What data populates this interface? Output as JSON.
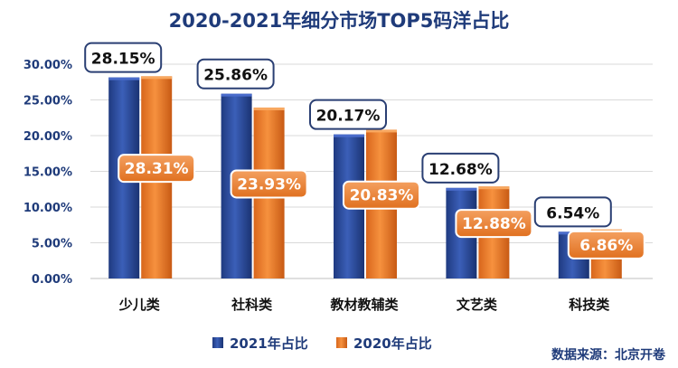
{
  "chart_data": {
    "type": "bar",
    "title": "2020-2021年细分市场TOP5码洋占比",
    "categories": [
      "少儿类",
      "社科类",
      "教材教辅类",
      "文艺类",
      "科技类"
    ],
    "series": [
      {
        "name": "2021年占比",
        "values": [
          28.15,
          25.86,
          20.17,
          12.68,
          6.54
        ],
        "labels": [
          "28.15%",
          "25.86%",
          "20.17%",
          "12.68%",
          "6.54%"
        ],
        "color": "#2f4f9e"
      },
      {
        "name": "2020年占比",
        "values": [
          28.31,
          23.93,
          20.83,
          12.88,
          6.86
        ],
        "labels": [
          "28.31%",
          "23.93%",
          "20.83%",
          "12.88%",
          "6.86%"
        ],
        "color": "#ed7d31"
      }
    ],
    "ylim": [
      0,
      30
    ],
    "yticks": [
      "0.00%",
      "5.00%",
      "10.00%",
      "15.00%",
      "20.00%",
      "25.00%",
      "30.00%"
    ],
    "grid": true,
    "legend_position": "bottom",
    "source": "数据来源：北京开卷"
  }
}
